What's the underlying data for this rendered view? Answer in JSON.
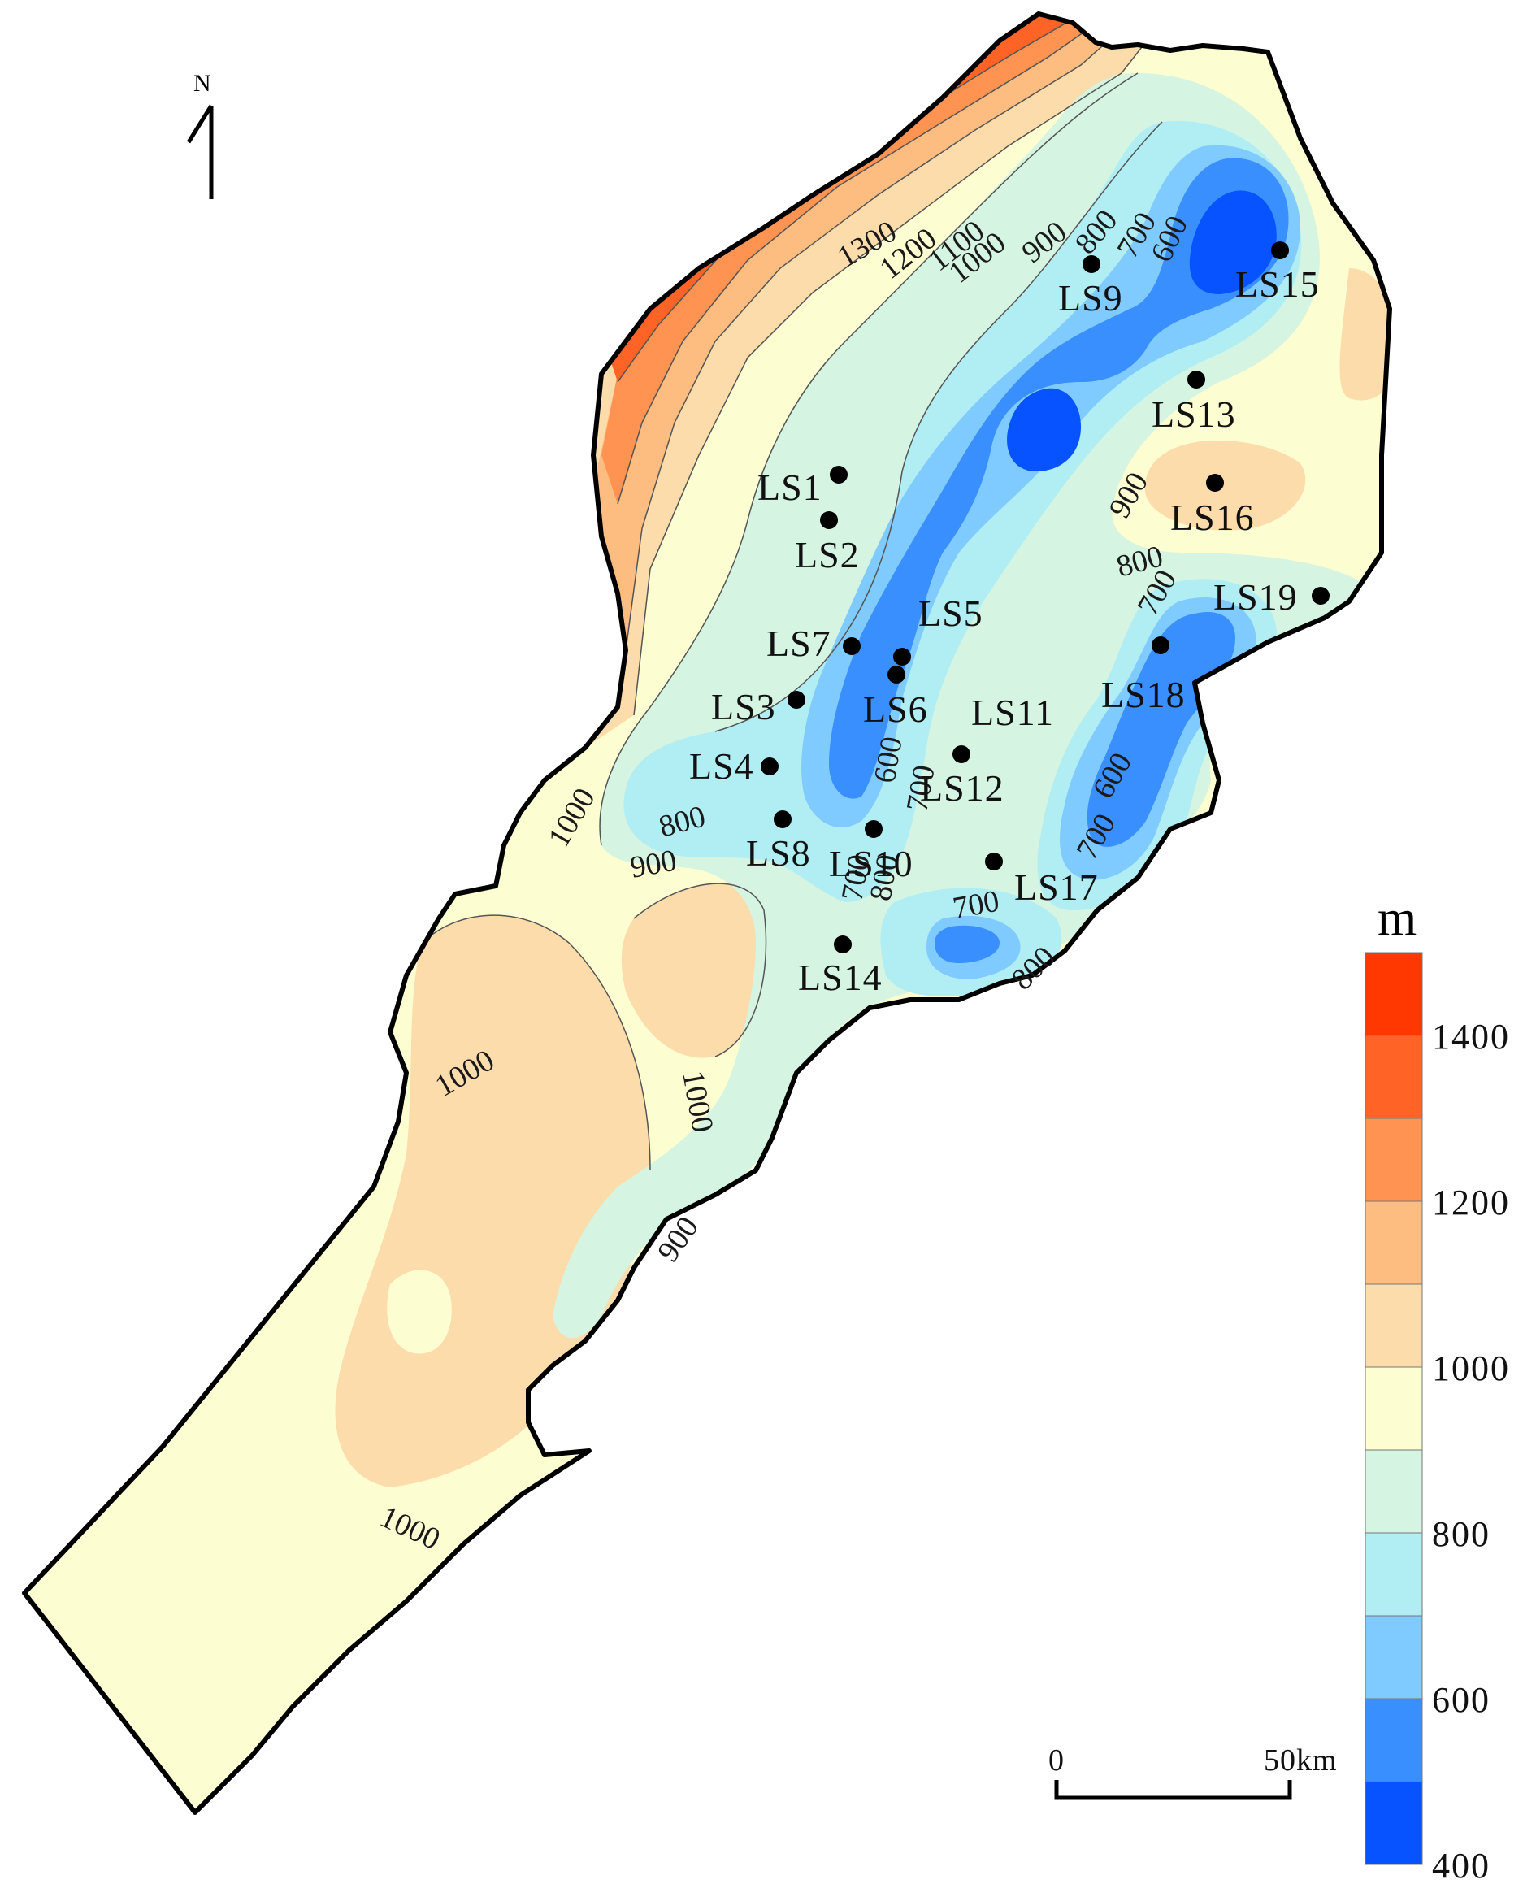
{
  "unit": "m",
  "north_label": "N",
  "scale_bar": {
    "start_label": "0",
    "end_label": "50km"
  },
  "legend": {
    "title": "m",
    "bins": [
      {
        "color": "#FF3700"
      },
      {
        "color": "#FF6326"
      },
      {
        "color": "#FF9351"
      },
      {
        "color": "#FDBC80"
      },
      {
        "color": "#FCDCAA"
      },
      {
        "color": "#FDFDD2"
      },
      {
        "color": "#D5F4E1"
      },
      {
        "color": "#B1EEF3"
      },
      {
        "color": "#7FCAFF"
      },
      {
        "color": "#3A8FFF"
      },
      {
        "color": "#0753FF"
      }
    ],
    "tick_labels": [
      "1400",
      "1200",
      "1000",
      "800",
      "600",
      "400"
    ]
  },
  "contour_labels": [
    "1300",
    "1200",
    "1100",
    "1000",
    "900",
    "800",
    "700",
    "600",
    "900",
    "800",
    "700",
    "600",
    "700",
    "800",
    "900",
    "1000",
    "1000",
    "1000",
    "900",
    "1000",
    "600",
    "700",
    "700",
    "800",
    "700",
    "800"
  ],
  "wells": [
    "LS1",
    "LS2",
    "LS3",
    "LS4",
    "LS5",
    "LS6",
    "LS7",
    "LS8",
    "LS9",
    "LS10",
    "LS11",
    "LS12",
    "LS13",
    "LS14",
    "LS15",
    "LS16",
    "LS17",
    "LS18",
    "LS19"
  ],
  "colors": {
    "outline": "#000000",
    "contour_line": "#555555",
    "well_dot": "#000000"
  }
}
